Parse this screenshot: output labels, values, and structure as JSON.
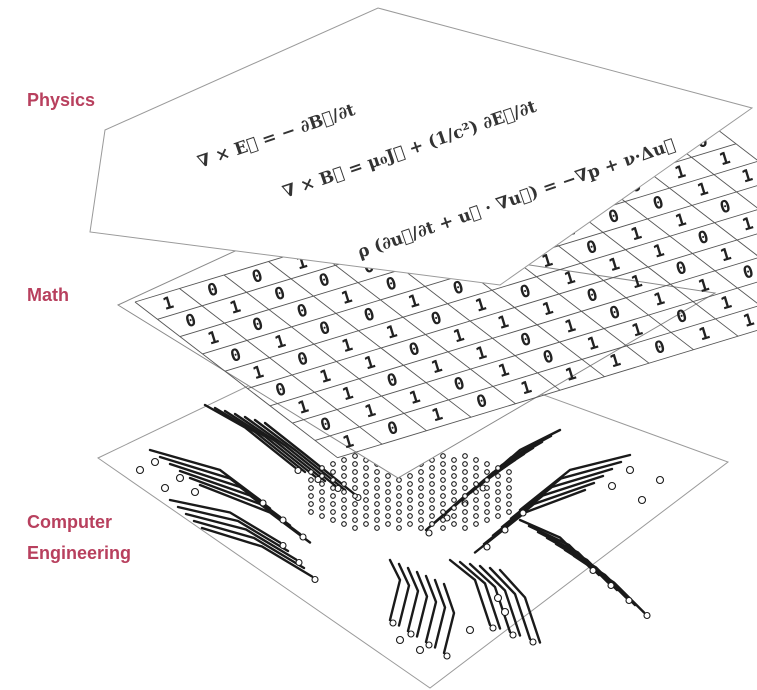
{
  "labels": {
    "physics": "Physics",
    "math": "Math",
    "computer_engineering_line1": "Computer",
    "computer_engineering_line2": "Engineering"
  },
  "accent_color": "#b8405e",
  "equations": {
    "faraday": "∇ × E⃗ = − ∂B⃗/∂t",
    "ampere": "∇ × B⃗ = μ₀J⃗ + (1/c²) ∂E⃗/∂t",
    "navier_stokes": "ρ (∂u⃗/∂t + u⃗ · ∇u⃗) = −∇p + ν·Δu⃗"
  },
  "binary_grid": {
    "rows": [
      "1001110010110",
      "0100011001011",
      "1001001010011",
      "0100101101101",
      "1011010111010",
      "0110111010110",
      "1101101011011",
      "0110101101101",
      "1010111011010"
    ]
  }
}
